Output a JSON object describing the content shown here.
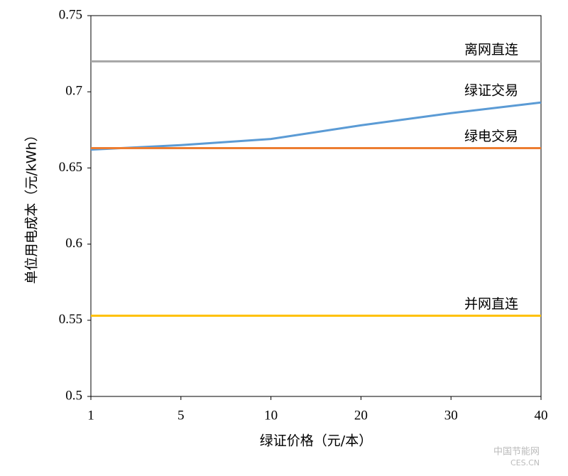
{
  "chart_data": {
    "type": "line",
    "y_label": "单位用电成本（元/kWh）",
    "x_label": "绿证价格（元/本）",
    "categories": [
      "1",
      "5",
      "10",
      "20",
      "30",
      "40"
    ],
    "series": [
      {
        "name": "离网直连",
        "color": "#a6a6a6",
        "values": [
          0.72,
          0.72,
          0.72,
          0.72,
          0.72,
          0.72
        ]
      },
      {
        "name": "绿证交易",
        "color": "#5b9bd5",
        "values": [
          0.662,
          0.665,
          0.669,
          0.678,
          0.686,
          0.693
        ]
      },
      {
        "name": "绿电交易",
        "color": "#ed7d31",
        "values": [
          0.663,
          0.663,
          0.663,
          0.663,
          0.663,
          0.663
        ]
      },
      {
        "name": "并网直连",
        "color": "#ffc000",
        "values": [
          0.553,
          0.553,
          0.553,
          0.553,
          0.553,
          0.553
        ]
      }
    ],
    "ylim": [
      0.5,
      0.75
    ],
    "yticks": [
      0.5,
      0.55,
      0.6,
      0.65,
      0.7,
      0.75
    ],
    "watermark": "中国节能网",
    "watermark_sub": "CES.CN"
  }
}
